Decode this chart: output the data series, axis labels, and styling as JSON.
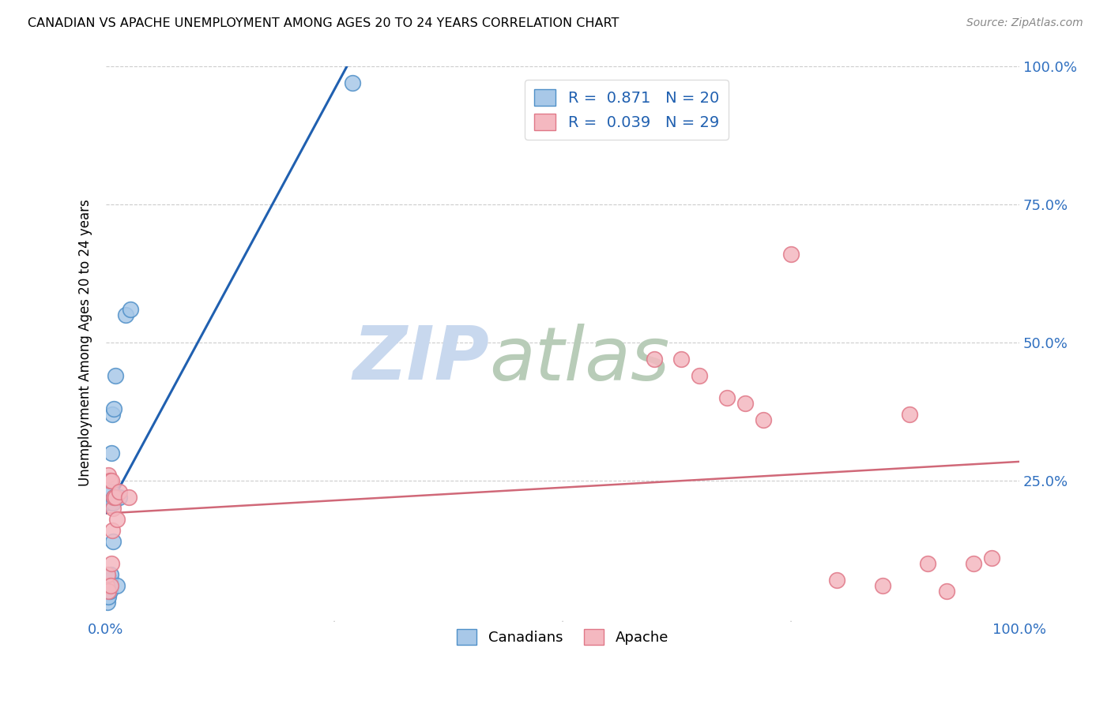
{
  "title": "CANADIAN VS APACHE UNEMPLOYMENT AMONG AGES 20 TO 24 YEARS CORRELATION CHART",
  "source": "Source: ZipAtlas.com",
  "ylabel": "Unemployment Among Ages 20 to 24 years",
  "xlim": [
    0,
    1
  ],
  "ylim": [
    0,
    1
  ],
  "xticks": [
    0.0,
    0.25,
    0.5,
    0.75,
    1.0
  ],
  "xticklabels": [
    "0.0%",
    "",
    "",
    "",
    "100.0%"
  ],
  "yticks": [
    0.0,
    0.25,
    0.5,
    0.75,
    1.0
  ],
  "yticklabels": [
    "",
    "25.0%",
    "50.0%",
    "75.0%",
    "100.0%"
  ],
  "canadians_color": "#a8c8e8",
  "apache_color": "#f4b8c0",
  "canadians_edge_color": "#5090c8",
  "apache_edge_color": "#e07888",
  "canadians_line_color": "#2060b0",
  "apache_line_color": "#d06878",
  "legend_label_canadians": "R =  0.871   N = 20",
  "legend_label_apache": "R =  0.039   N = 29",
  "canadians_x": [
    0.002,
    0.003,
    0.003,
    0.004,
    0.004,
    0.005,
    0.005,
    0.006,
    0.006,
    0.007,
    0.008,
    0.008,
    0.009,
    0.009,
    0.01,
    0.012,
    0.015,
    0.022,
    0.027,
    0.27
  ],
  "canadians_y": [
    0.03,
    0.04,
    0.06,
    0.05,
    0.07,
    0.08,
    0.21,
    0.23,
    0.3,
    0.37,
    0.14,
    0.21,
    0.22,
    0.38,
    0.44,
    0.06,
    0.22,
    0.55,
    0.56,
    0.97
  ],
  "apache_x": [
    0.001,
    0.002,
    0.003,
    0.003,
    0.004,
    0.005,
    0.006,
    0.006,
    0.007,
    0.008,
    0.009,
    0.01,
    0.012,
    0.015,
    0.025,
    0.6,
    0.63,
    0.65,
    0.68,
    0.7,
    0.72,
    0.75,
    0.8,
    0.85,
    0.88,
    0.9,
    0.92,
    0.95,
    0.97
  ],
  "apache_y": [
    0.06,
    0.08,
    0.05,
    0.26,
    0.25,
    0.06,
    0.1,
    0.25,
    0.16,
    0.2,
    0.22,
    0.22,
    0.18,
    0.23,
    0.22,
    0.47,
    0.47,
    0.44,
    0.4,
    0.39,
    0.36,
    0.66,
    0.07,
    0.06,
    0.37,
    0.1,
    0.05,
    0.1,
    0.11
  ],
  "background_color": "#ffffff",
  "grid_color": "#cccccc"
}
